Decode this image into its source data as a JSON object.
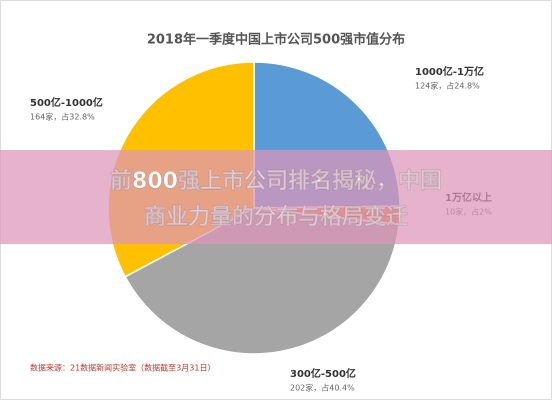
{
  "chart_data": {
    "type": "pie",
    "title": "2018年一季度中国上市公司500强市值分布",
    "categories": [
      "1000亿-1万亿",
      "1万亿以上",
      "300亿-500亿",
      "500亿-1000亿"
    ],
    "values": [
      24.8,
      2,
      40.4,
      32.8
    ],
    "value_labels": [
      "124家，占24.8%",
      "10家，占2%",
      "202家，占40.4%",
      "164家，占32.8%"
    ],
    "colors": [
      "#5b9bd5",
      "#ed7d31",
      "#a5a5a5",
      "#ffc000"
    ],
    "source": "数据来源：21数据新闻实验室（数据截至3月31日）"
  },
  "overlay_text": [
    "前800强上市公司排名揭秘，中国",
    "商业力量的分布与格局变迁"
  ]
}
